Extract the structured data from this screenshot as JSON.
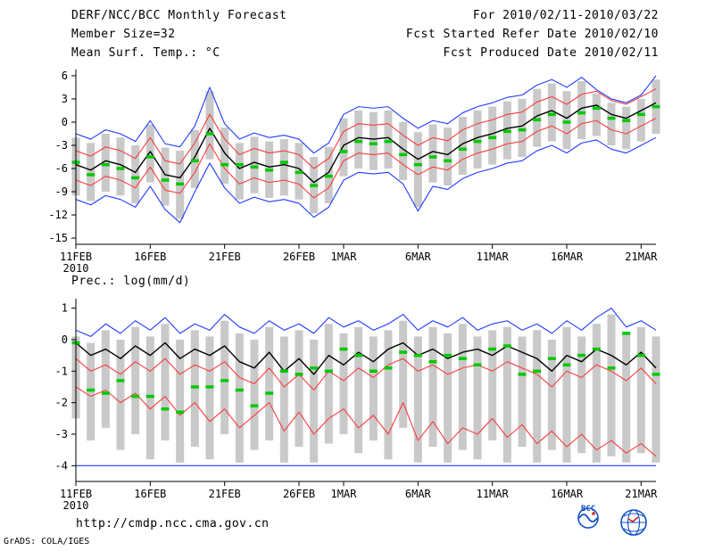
{
  "header": {
    "title": "DERF/NCC/BCC Monthly Forecast",
    "member_size": "Member Size=32",
    "for_range": "For 2010/02/11-2010/03/22",
    "refer_date": "Fcst Started Refer Date 2010/02/10",
    "produced_date": "Fcst Produced Date 2010/02/11"
  },
  "footer": {
    "url": "http://cmdp.ncc.cma.gov.cn",
    "grads_credit": "GrADS: COLA/IGES",
    "bcc_label": "BCC"
  },
  "colors": {
    "line_blue": "#1e3cff",
    "line_red": "#fa3c3c",
    "line_black": "#000000",
    "line_green": "#00c800",
    "bar_gray": "#c9c9c9",
    "axis": "#000000"
  },
  "chart_data": [
    {
      "type": "line",
      "title": "Mean Surf. Temp.: °C",
      "x": {
        "n": 40,
        "tick_days": [
          0,
          5,
          10,
          15,
          18,
          23,
          28,
          33,
          38
        ],
        "tick_labels": [
          "11FEB",
          "16FEB",
          "21FEB",
          "26FEB",
          "1MAR",
          "6MAR",
          "11MAR",
          "16MAR",
          "21MAR"
        ],
        "year": "2010"
      },
      "y": {
        "lim": [
          -15.8,
          6.8
        ],
        "ticks": [
          6,
          3,
          0,
          -3,
          -6,
          -9,
          -12,
          -15
        ]
      },
      "bars": {
        "color": "#c9c9c9",
        "width": 9,
        "hi": [
          -2.0,
          -2.7,
          -1.5,
          -2.0,
          -3.0,
          -0.3,
          -3.3,
          -3.7,
          -1.0,
          4.0,
          -0.7,
          -2.7,
          -1.9,
          -2.5,
          -2.2,
          -2.7,
          -4.5,
          -3.2,
          0.5,
          1.5,
          1.3,
          1.5,
          0.0,
          -1.3,
          -0.3,
          -0.7,
          0.7,
          1.5,
          2.0,
          2.7,
          3.0,
          4.3,
          5.0,
          4.0,
          5.3,
          3.7,
          2.5,
          2.0,
          3.0,
          5.5
        ],
        "lo": [
          -9.5,
          -10.2,
          -9.0,
          -9.5,
          -10.5,
          -7.8,
          -10.8,
          -12.5,
          -8.5,
          -4.8,
          -8.0,
          -10.0,
          -9.2,
          -9.8,
          -9.5,
          -10.0,
          -11.8,
          -10.5,
          -7.0,
          -6.0,
          -6.2,
          -6.0,
          -7.5,
          -11.0,
          -7.8,
          -8.2,
          -6.8,
          -6.0,
          -5.5,
          -4.8,
          -4.5,
          -3.2,
          -2.5,
          -3.5,
          -2.2,
          -1.8,
          -3.0,
          -3.5,
          -2.5,
          -1.5
        ]
      },
      "series": [
        {
          "name": "ensemble-max",
          "color": "#1e3cff",
          "style": "line",
          "width": 1.1,
          "values": [
            -1.5,
            -2.2,
            -1.0,
            -1.5,
            -2.5,
            0.2,
            -2.8,
            -3.2,
            -0.5,
            4.5,
            -0.2,
            -2.2,
            -1.4,
            -2.0,
            -1.7,
            -2.2,
            -4.0,
            -2.7,
            1.0,
            2.0,
            1.8,
            2.0,
            0.5,
            -0.8,
            0.2,
            -0.2,
            1.2,
            2.0,
            2.5,
            3.2,
            3.5,
            4.8,
            5.5,
            4.5,
            5.8,
            4.2,
            3.0,
            2.5,
            3.5,
            6.0
          ]
        },
        {
          "name": "ensemble-min",
          "color": "#1e3cff",
          "style": "line",
          "width": 1.1,
          "values": [
            -10.0,
            -10.7,
            -9.5,
            -10.0,
            -11.0,
            -8.3,
            -11.3,
            -13.0,
            -9.0,
            -5.3,
            -8.5,
            -10.5,
            -9.7,
            -10.3,
            -10.0,
            -10.5,
            -12.3,
            -11.0,
            -7.5,
            -6.5,
            -6.7,
            -6.5,
            -8.0,
            -11.5,
            -8.3,
            -8.7,
            -7.3,
            -6.5,
            -6.0,
            -5.3,
            -5.0,
            -3.7,
            -3.0,
            -4.0,
            -2.7,
            -2.3,
            -3.5,
            -4.0,
            -3.0,
            -2.0
          ]
        },
        {
          "name": "upper-quartile",
          "color": "#fa3c3c",
          "style": "line",
          "width": 1.1,
          "values": [
            -3.7,
            -4.4,
            -3.2,
            -3.7,
            -4.7,
            -2.0,
            -5.0,
            -5.4,
            -2.7,
            1.0,
            -2.2,
            -4.2,
            -3.4,
            -4.0,
            -3.7,
            -4.2,
            -6.0,
            -4.7,
            -1.2,
            -0.2,
            -0.4,
            -0.2,
            -1.7,
            -3.0,
            -2.0,
            -2.4,
            -1.0,
            -0.2,
            0.3,
            1.0,
            1.3,
            2.6,
            3.3,
            2.3,
            3.6,
            4.0,
            2.8,
            2.3,
            3.3,
            4.3
          ]
        },
        {
          "name": "lower-quartile",
          "color": "#fa3c3c",
          "style": "line",
          "width": 1.1,
          "values": [
            -7.5,
            -8.2,
            -7.0,
            -7.5,
            -8.5,
            -5.8,
            -8.8,
            -9.2,
            -6.5,
            -2.8,
            -6.0,
            -8.0,
            -7.2,
            -7.8,
            -7.5,
            -8.0,
            -9.8,
            -8.5,
            -5.0,
            -4.0,
            -4.2,
            -4.0,
            -5.5,
            -6.8,
            -5.8,
            -6.2,
            -4.8,
            -4.0,
            -3.5,
            -2.8,
            -2.5,
            -1.2,
            -0.5,
            -1.5,
            -0.2,
            0.2,
            -1.0,
            -1.5,
            -0.5,
            0.5
          ]
        },
        {
          "name": "ensemble-mean",
          "color": "#000000",
          "style": "line",
          "width": 1.4,
          "values": [
            -5.5,
            -6.2,
            -5.0,
            -5.5,
            -6.5,
            -3.8,
            -6.8,
            -7.2,
            -4.5,
            -0.8,
            -4.0,
            -6.0,
            -5.2,
            -5.8,
            -5.5,
            -6.0,
            -7.8,
            -6.5,
            -3.0,
            -2.0,
            -2.2,
            -2.0,
            -3.5,
            -4.8,
            -3.8,
            -4.2,
            -2.8,
            -2.0,
            -1.5,
            -0.8,
            -0.5,
            0.8,
            1.5,
            0.5,
            1.8,
            2.2,
            1.0,
            0.5,
            1.5,
            2.5
          ]
        },
        {
          "name": "observation",
          "color": "#00c800",
          "style": "dashes",
          "values": [
            -5.2,
            -6.8,
            -5.5,
            -6.0,
            -7.2,
            -4.5,
            -7.5,
            -8.0,
            -5.0,
            -1.5,
            -5.5,
            -5.5,
            -5.8,
            -6.2,
            -5.2,
            -6.5,
            -8.2,
            -7.0,
            -3.8,
            -2.5,
            -2.8,
            -2.5,
            -4.2,
            -5.5,
            -4.5,
            -5.0,
            -3.5,
            -2.5,
            -2.0,
            -1.2,
            -1.0,
            0.3,
            1.0,
            0.0,
            1.2,
            1.8,
            0.5,
            0.2,
            1.0,
            2.0
          ]
        }
      ]
    },
    {
      "type": "line",
      "title": "Prec.: log(mm/d)",
      "x": {
        "n": 40,
        "tick_days": [
          0,
          5,
          10,
          15,
          18,
          23,
          28,
          33,
          38
        ],
        "tick_labels": [
          "11FEB",
          "16FEB",
          "21FEB",
          "26FEB",
          "1MAR",
          "6MAR",
          "11MAR",
          "16MAR",
          "21MAR"
        ],
        "year": "2010"
      },
      "y": {
        "lim": [
          -4.5,
          1.3
        ],
        "ticks": [
          1,
          0,
          -1,
          -2,
          -3,
          -4
        ]
      },
      "hline": {
        "value": -4,
        "color": "#1e3cff"
      },
      "bars": {
        "color": "#c9c9c9",
        "width": 9,
        "hi": [
          0.1,
          -0.1,
          0.3,
          0.0,
          0.4,
          0.1,
          0.5,
          0.0,
          0.3,
          0.1,
          0.6,
          0.2,
          0.0,
          0.4,
          0.1,
          0.3,
          0.0,
          0.5,
          0.2,
          0.4,
          0.1,
          0.3,
          0.6,
          0.1,
          0.4,
          0.2,
          0.5,
          0.1,
          0.3,
          0.4,
          0.1,
          0.3,
          0.0,
          0.4,
          0.1,
          0.5,
          0.8,
          0.2,
          0.4,
          0.1
        ],
        "lo": [
          -2.5,
          -3.2,
          -2.8,
          -3.5,
          -3.0,
          -3.8,
          -3.2,
          -3.9,
          -3.4,
          -3.8,
          -3.0,
          -3.9,
          -3.5,
          -3.2,
          -3.9,
          -3.4,
          -3.9,
          -3.3,
          -3.0,
          -3.6,
          -3.2,
          -3.8,
          -2.8,
          -3.9,
          -3.4,
          -3.9,
          -3.5,
          -3.8,
          -3.2,
          -3.9,
          -3.4,
          -3.9,
          -3.5,
          -3.9,
          -3.6,
          -3.9,
          -3.7,
          -3.9,
          -3.6,
          -3.9
        ]
      },
      "series": [
        {
          "name": "ensemble-max",
          "color": "#1e3cff",
          "style": "line",
          "width": 1.1,
          "values": [
            0.3,
            0.1,
            0.5,
            0.2,
            0.6,
            0.3,
            0.7,
            0.2,
            0.5,
            0.3,
            0.8,
            0.4,
            0.2,
            0.6,
            0.3,
            0.5,
            0.2,
            0.7,
            0.4,
            0.6,
            0.3,
            0.5,
            0.8,
            0.3,
            0.6,
            0.4,
            0.7,
            0.3,
            0.5,
            0.6,
            0.3,
            0.5,
            0.2,
            0.6,
            0.3,
            0.7,
            1.0,
            0.4,
            0.6,
            0.3
          ]
        },
        {
          "name": "upper-quartile",
          "color": "#fa3c3c",
          "style": "line",
          "width": 1.1,
          "values": [
            -0.6,
            -1.0,
            -0.8,
            -1.1,
            -0.7,
            -1.0,
            -0.6,
            -1.1,
            -0.8,
            -1.0,
            -0.7,
            -1.2,
            -1.4,
            -0.9,
            -1.5,
            -1.1,
            -1.6,
            -1.0,
            -1.3,
            -0.9,
            -1.2,
            -0.8,
            -0.6,
            -1.0,
            -0.8,
            -1.1,
            -0.9,
            -0.8,
            -1.0,
            -0.7,
            -0.9,
            -1.1,
            -1.5,
            -1.0,
            -1.2,
            -0.8,
            -1.0,
            -1.3,
            -0.9,
            -1.4
          ]
        },
        {
          "name": "lower-quartile",
          "color": "#fa3c3c",
          "style": "line",
          "width": 1.1,
          "values": [
            -1.5,
            -1.8,
            -1.6,
            -2.0,
            -1.7,
            -2.2,
            -1.8,
            -2.4,
            -2.0,
            -2.6,
            -2.2,
            -2.8,
            -2.4,
            -2.0,
            -2.9,
            -2.3,
            -3.0,
            -2.5,
            -2.2,
            -2.8,
            -2.4,
            -3.0,
            -2.0,
            -3.2,
            -2.6,
            -3.3,
            -2.8,
            -3.0,
            -2.5,
            -3.1,
            -2.7,
            -3.3,
            -2.9,
            -3.4,
            -3.0,
            -3.5,
            -3.2,
            -3.6,
            -3.3,
            -3.7
          ]
        },
        {
          "name": "ensemble-mean",
          "color": "#000000",
          "style": "line",
          "width": 1.4,
          "values": [
            -0.1,
            -0.5,
            -0.3,
            -0.6,
            -0.2,
            -0.5,
            -0.1,
            -0.6,
            -0.3,
            -0.5,
            -0.2,
            -0.7,
            -0.9,
            -0.4,
            -1.0,
            -0.6,
            -1.1,
            -0.5,
            -0.8,
            -0.4,
            -0.7,
            -0.3,
            -0.1,
            -0.5,
            -0.3,
            -0.6,
            -0.4,
            -0.3,
            -0.5,
            -0.2,
            -0.4,
            -0.6,
            -1.0,
            -0.5,
            -0.7,
            -0.3,
            -0.5,
            -0.8,
            -0.4,
            -0.9
          ]
        },
        {
          "name": "observation",
          "color": "#00c800",
          "style": "dashes",
          "values": [
            -0.1,
            -1.6,
            -1.7,
            -1.3,
            -1.8,
            -1.8,
            -2.2,
            -2.3,
            -1.5,
            -1.5,
            -1.3,
            -1.6,
            -2.1,
            -1.7,
            -1.0,
            -1.1,
            -0.9,
            -1.0,
            -0.3,
            -0.5,
            -1.0,
            -0.9,
            -0.4,
            -0.5,
            -0.7,
            -0.5,
            -0.6,
            -0.8,
            -0.3,
            -0.2,
            -1.1,
            -1.0,
            -0.6,
            -0.8,
            -0.5,
            -0.3,
            -0.9,
            0.2,
            -0.5,
            -1.1
          ]
        }
      ]
    }
  ]
}
